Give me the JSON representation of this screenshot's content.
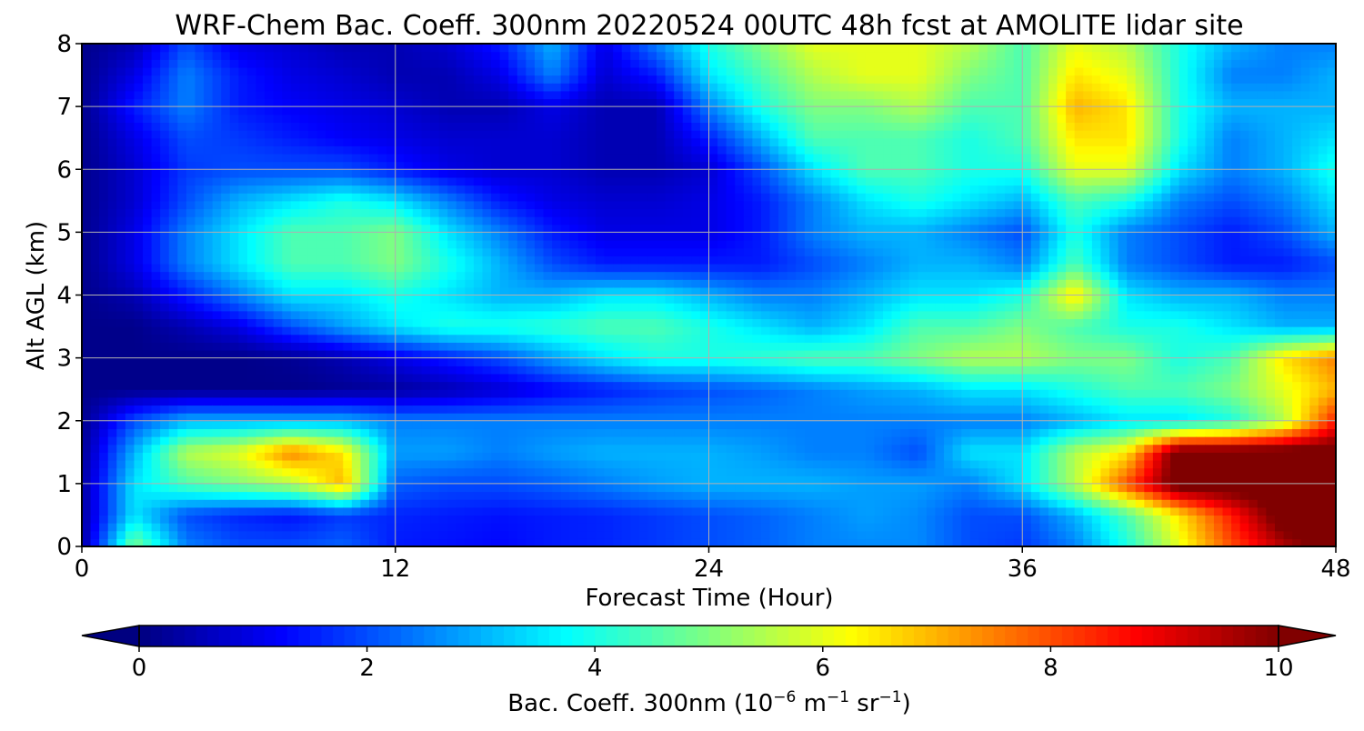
{
  "chart_data": {
    "type": "heatmap",
    "title": "WRF-Chem Bac. Coeff. 300nm  20220524 00UTC 48h fcst at AMOLITE lidar site",
    "xlabel": "Forecast Time (Hour)",
    "ylabel": "Alt AGL (km)",
    "xlim": [
      0,
      48
    ],
    "ylim": [
      0,
      8
    ],
    "x_ticks": [
      "0",
      "12",
      "24",
      "36",
      "48"
    ],
    "y_ticks": [
      "0",
      "1",
      "2",
      "3",
      "4",
      "5",
      "6",
      "7",
      "8"
    ],
    "grid": true,
    "colormap": "jet",
    "colorbar": {
      "label_main": "Bac. Coeff. 300nm  (10",
      "label_exp1": "−6",
      "label_mid": " m",
      "label_exp2": "−1",
      "label_mid2": " sr",
      "label_exp3": "−1",
      "label_end": ")",
      "range": [
        0,
        10
      ],
      "ticks": [
        "0",
        "2",
        "4",
        "6",
        "8",
        "10"
      ],
      "extend": "both",
      "orientation": "horizontal"
    },
    "x": [
      0,
      2,
      4,
      6,
      8,
      10,
      12,
      14,
      16,
      18,
      20,
      22,
      24,
      26,
      28,
      30,
      32,
      34,
      36,
      38,
      40,
      42,
      44,
      46,
      48
    ],
    "y": [
      0,
      0.5,
      1,
      1.5,
      2,
      2.5,
      3,
      3.5,
      4,
      4.5,
      5,
      5.5,
      6,
      6.5,
      7,
      7.5,
      8
    ],
    "z": [
      [
        0.3,
        5.0,
        2.5,
        2.0,
        2.0,
        2.2,
        1.5,
        1.4,
        1.3,
        1.5,
        1.6,
        1.8,
        2.0,
        2.2,
        2.5,
        2.6,
        2.6,
        2.0,
        1.8,
        2.5,
        4.0,
        6.0,
        8.0,
        9.5,
        10.5
      ],
      [
        0.3,
        3.5,
        2.0,
        1.6,
        1.4,
        1.8,
        1.6,
        1.5,
        1.4,
        1.5,
        1.6,
        1.8,
        2.0,
        2.2,
        2.5,
        2.8,
        2.6,
        2.0,
        2.0,
        3.0,
        4.5,
        6.5,
        8.5,
        10.5,
        10.5
      ],
      [
        0.3,
        3.5,
        4.5,
        5.0,
        5.5,
        7.0,
        2.2,
        2.0,
        2.0,
        2.2,
        2.5,
        2.8,
        3.0,
        3.0,
        3.0,
        2.8,
        2.8,
        2.5,
        3.5,
        5.5,
        8.0,
        10.5,
        10.5,
        10.5,
        10.5
      ],
      [
        0.2,
        3.0,
        5.5,
        6.0,
        7.5,
        6.5,
        2.8,
        2.8,
        2.5,
        2.8,
        3.0,
        3.0,
        3.0,
        2.8,
        2.5,
        2.5,
        2.0,
        3.5,
        3.5,
        5.5,
        6.5,
        10.5,
        10.5,
        10.5,
        10.5
      ],
      [
        0.1,
        2.0,
        3.0,
        3.0,
        3.0,
        3.0,
        2.5,
        2.5,
        2.5,
        2.5,
        2.5,
        2.5,
        2.5,
        2.5,
        2.5,
        2.5,
        2.5,
        2.5,
        2.5,
        3.0,
        3.5,
        3.5,
        4.0,
        5.5,
        8.5
      ],
      [
        0.1,
        0.1,
        0.1,
        0.1,
        0.1,
        0.2,
        0.3,
        0.5,
        0.8,
        1.2,
        1.5,
        1.8,
        2.0,
        2.2,
        2.5,
        2.8,
        3.0,
        3.5,
        3.5,
        4.0,
        4.5,
        4.5,
        5.0,
        6.0,
        7.0
      ],
      [
        0.1,
        0.1,
        0.1,
        0.1,
        0.2,
        0.5,
        1.0,
        1.5,
        2.0,
        2.8,
        3.5,
        4.0,
        4.0,
        4.2,
        4.5,
        4.5,
        5.0,
        5.5,
        5.5,
        5.0,
        5.0,
        4.0,
        4.5,
        6.5,
        7.5
      ],
      [
        0.1,
        0.1,
        0.5,
        1.0,
        2.0,
        2.8,
        3.5,
        4.0,
        4.0,
        4.2,
        4.5,
        4.5,
        4.0,
        3.5,
        3.0,
        3.5,
        4.5,
        4.5,
        5.0,
        4.5,
        4.0,
        4.0,
        3.5,
        3.0,
        3.0
      ],
      [
        0.1,
        0.5,
        1.5,
        2.5,
        3.5,
        3.5,
        4.0,
        3.5,
        3.0,
        3.0,
        3.5,
        3.5,
        3.0,
        2.5,
        2.5,
        3.0,
        3.5,
        3.5,
        4.0,
        6.5,
        3.5,
        3.0,
        3.0,
        2.5,
        2.5
      ],
      [
        0.1,
        1.0,
        2.5,
        3.5,
        4.5,
        4.5,
        5.0,
        4.0,
        3.0,
        2.0,
        1.5,
        1.5,
        1.5,
        1.5,
        2.0,
        2.5,
        3.0,
        3.0,
        2.5,
        4.5,
        2.5,
        2.0,
        1.5,
        1.5,
        2.0
      ],
      [
        0.1,
        1.0,
        2.5,
        3.5,
        4.5,
        4.5,
        5.0,
        3.5,
        2.5,
        1.5,
        1.0,
        1.0,
        1.0,
        1.5,
        2.5,
        3.0,
        3.0,
        2.5,
        2.0,
        4.0,
        2.5,
        2.0,
        1.5,
        2.0,
        3.0
      ],
      [
        0.1,
        0.8,
        2.0,
        3.0,
        3.5,
        4.0,
        3.5,
        2.5,
        1.5,
        1.0,
        0.8,
        0.8,
        1.0,
        1.5,
        2.5,
        3.5,
        4.0,
        3.5,
        3.0,
        4.5,
        4.0,
        2.5,
        2.0,
        2.5,
        3.5
      ],
      [
        0.1,
        0.8,
        1.8,
        2.0,
        2.0,
        2.0,
        1.5,
        1.0,
        0.8,
        0.8,
        0.5,
        0.5,
        0.8,
        2.0,
        3.5,
        4.5,
        4.5,
        4.0,
        4.0,
        6.0,
        6.0,
        3.5,
        2.5,
        3.0,
        4.0
      ],
      [
        0.1,
        1.0,
        2.0,
        1.8,
        1.5,
        1.2,
        1.0,
        0.8,
        0.8,
        0.8,
        0.5,
        0.5,
        1.5,
        3.0,
        4.5,
        4.5,
        4.5,
        4.0,
        4.5,
        6.5,
        6.5,
        4.0,
        2.5,
        3.0,
        3.5
      ],
      [
        0.1,
        1.5,
        2.5,
        1.5,
        1.2,
        1.0,
        0.8,
        0.5,
        0.5,
        1.0,
        0.5,
        0.5,
        2.5,
        4.0,
        5.0,
        5.0,
        5.5,
        4.5,
        4.5,
        7.0,
        6.5,
        4.0,
        3.0,
        3.0,
        3.0
      ],
      [
        0.1,
        1.0,
        2.5,
        1.5,
        1.0,
        0.8,
        0.5,
        0.5,
        1.0,
        2.5,
        0.8,
        1.5,
        3.5,
        4.5,
        5.5,
        6.0,
        6.0,
        5.0,
        4.5,
        6.5,
        6.0,
        4.0,
        2.5,
        2.5,
        3.0
      ],
      [
        0.1,
        0.5,
        2.0,
        1.0,
        0.8,
        0.5,
        0.5,
        0.8,
        1.5,
        3.0,
        1.0,
        2.5,
        4.0,
        5.0,
        6.0,
        6.0,
        6.0,
        5.5,
        4.5,
        6.0,
        5.5,
        4.0,
        3.0,
        2.5,
        2.5
      ]
    ]
  }
}
